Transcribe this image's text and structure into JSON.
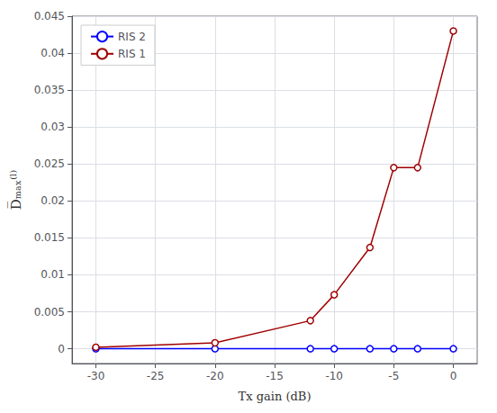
{
  "chart_data": {
    "type": "line",
    "xlabel": "Tx gain (dB)",
    "ylabel": "D̅ₘₐₓ⁽ˡ⁾",
    "x": [
      -30,
      -20,
      -12,
      -10,
      -7,
      -5,
      -3,
      0
    ],
    "series": [
      {
        "name": "RIS 2",
        "color": "#0000FF",
        "marker": "circle",
        "values": [
          0.0,
          0.0,
          0.0,
          0.0,
          0.0,
          0.0,
          0.0,
          0.0
        ]
      },
      {
        "name": "RIS 1",
        "color": "#A00000",
        "marker": "circle",
        "values": [
          0.0002,
          0.0008,
          0.0038,
          0.0073,
          0.0137,
          0.0245,
          0.0245,
          0.043
        ]
      }
    ],
    "xlim": [
      -32,
      2
    ],
    "ylim": [
      -0.002,
      0.045
    ],
    "xticks": [
      -30,
      -25,
      -20,
      -15,
      -10,
      -5,
      0
    ],
    "yticks": [
      0.0,
      0.005,
      0.01,
      0.015,
      0.02,
      0.025,
      0.03,
      0.035,
      0.04,
      0.045
    ],
    "grid": true,
    "legend": "upper left"
  }
}
